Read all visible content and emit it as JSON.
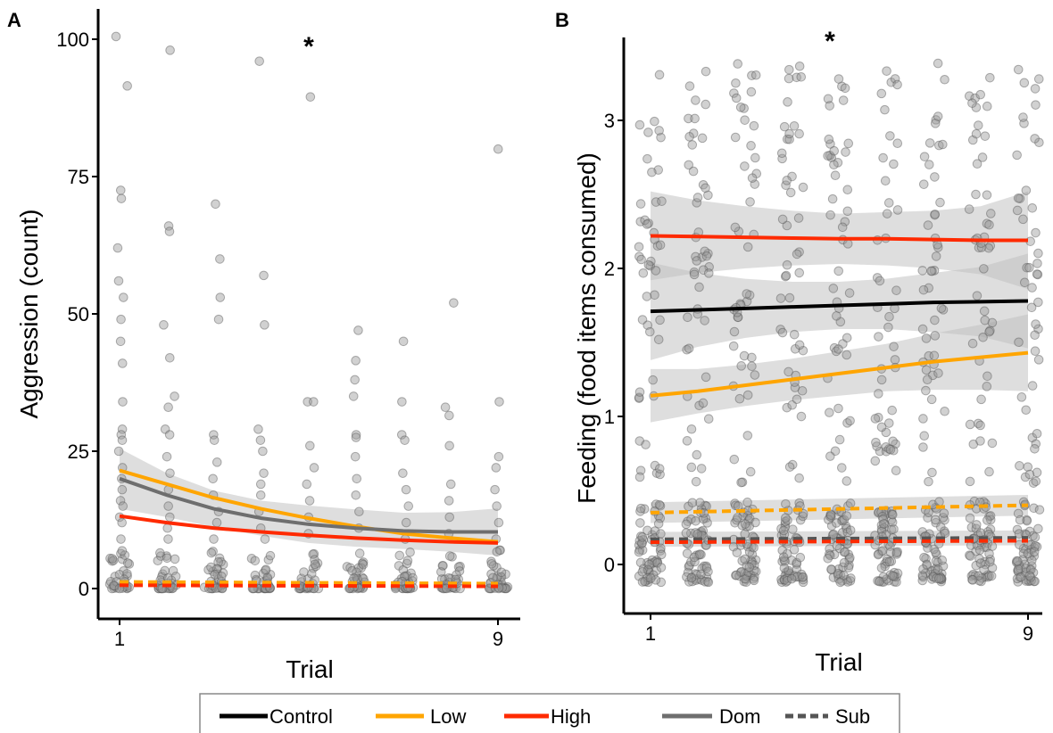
{
  "colors": {
    "control": "#000000",
    "low": "#FFA500",
    "high": "#FF2A00",
    "dom": "#6E6E6E",
    "sub": "#555555",
    "points": "#9A9A9A",
    "ribbon": "#BEBEBE"
  },
  "legend": {
    "control": "Control",
    "low": "Low",
    "high": "High",
    "dom": "Dom",
    "sub": "Sub"
  },
  "chart_data": [
    {
      "panel_label": "A",
      "type": "scatter",
      "xlabel": "Trial",
      "ylabel": "Aggression (count)",
      "x_ticks": [
        "1",
        "9"
      ],
      "xlim": [
        1,
        9
      ],
      "ylim": [
        -2,
        102
      ],
      "y_ticks": [
        "0",
        "25",
        "50",
        "75",
        "100"
      ],
      "significance": "*",
      "significance_x": 5,
      "grid": false,
      "outlier_points": [
        {
          "x": 1,
          "y": 100.5
        },
        {
          "x": 1.1,
          "y": 91.5
        },
        {
          "x": 2.1,
          "y": 98
        },
        {
          "x": 4,
          "y": 96
        },
        {
          "x": 5,
          "y": 89.5
        },
        {
          "x": 9,
          "y": 80
        },
        {
          "x": 1.05,
          "y": 72.5
        },
        {
          "x": 1,
          "y": 71
        },
        {
          "x": 2,
          "y": 66
        },
        {
          "x": 2.05,
          "y": 65
        },
        {
          "x": 3,
          "y": 70
        },
        {
          "x": 3.1,
          "y": 60
        },
        {
          "x": 4,
          "y": 57
        },
        {
          "x": 1,
          "y": 62
        },
        {
          "x": 1,
          "y": 56
        },
        {
          "x": 1.05,
          "y": 53
        },
        {
          "x": 1,
          "y": 49
        },
        {
          "x": 2,
          "y": 48
        },
        {
          "x": 3.1,
          "y": 53
        },
        {
          "x": 3.1,
          "y": 49
        },
        {
          "x": 4,
          "y": 48
        },
        {
          "x": 6,
          "y": 47
        },
        {
          "x": 6.05,
          "y": 41.5
        },
        {
          "x": 7,
          "y": 45
        },
        {
          "x": 8,
          "y": 52
        },
        {
          "x": 9,
          "y": 34
        },
        {
          "x": 1,
          "y": 45
        },
        {
          "x": 1.05,
          "y": 41
        },
        {
          "x": 2,
          "y": 42
        },
        {
          "x": 2.1,
          "y": 35
        },
        {
          "x": 2.05,
          "y": 33
        },
        {
          "x": 5,
          "y": 34
        },
        {
          "x": 5.05,
          "y": 34
        },
        {
          "x": 6,
          "y": 38
        },
        {
          "x": 6,
          "y": 35
        },
        {
          "x": 7,
          "y": 34
        },
        {
          "x": 7.9,
          "y": 33
        },
        {
          "x": 8,
          "y": 31.5
        },
        {
          "x": 1,
          "y": 34
        },
        {
          "x": 1.05,
          "y": 29
        },
        {
          "x": 1,
          "y": 28
        },
        {
          "x": 1,
          "y": 27
        },
        {
          "x": 1.05,
          "y": 25
        },
        {
          "x": 2,
          "y": 29
        },
        {
          "x": 2.05,
          "y": 28
        },
        {
          "x": 2,
          "y": 24
        },
        {
          "x": 3,
          "y": 28
        },
        {
          "x": 3.05,
          "y": 27
        },
        {
          "x": 3,
          "y": 23
        },
        {
          "x": 4,
          "y": 29
        },
        {
          "x": 4,
          "y": 27
        },
        {
          "x": 4.05,
          "y": 25
        },
        {
          "x": 5,
          "y": 26
        },
        {
          "x": 5.05,
          "y": 22
        },
        {
          "x": 6,
          "y": 28
        },
        {
          "x": 6.05,
          "y": 27.5
        },
        {
          "x": 6,
          "y": 24
        },
        {
          "x": 7,
          "y": 28
        },
        {
          "x": 7.05,
          "y": 27
        },
        {
          "x": 7,
          "y": 21
        },
        {
          "x": 8,
          "y": 26
        },
        {
          "x": 8,
          "y": 19
        },
        {
          "x": 9,
          "y": 24
        },
        {
          "x": 9,
          "y": 22
        },
        {
          "x": 1,
          "y": 22
        },
        {
          "x": 1.05,
          "y": 20
        },
        {
          "x": 1,
          "y": 18
        },
        {
          "x": 1,
          "y": 16
        },
        {
          "x": 1.05,
          "y": 15
        },
        {
          "x": 1,
          "y": 13
        },
        {
          "x": 1.05,
          "y": 12
        },
        {
          "x": 1,
          "y": 9
        },
        {
          "x": 2,
          "y": 21
        },
        {
          "x": 2.05,
          "y": 18
        },
        {
          "x": 2,
          "y": 15
        },
        {
          "x": 2.1,
          "y": 13
        },
        {
          "x": 2,
          "y": 11
        },
        {
          "x": 2.05,
          "y": 9
        },
        {
          "x": 3,
          "y": 20
        },
        {
          "x": 3,
          "y": 17
        },
        {
          "x": 3.05,
          "y": 14
        },
        {
          "x": 3,
          "y": 12
        },
        {
          "x": 3.05,
          "y": 9
        },
        {
          "x": 4,
          "y": 21
        },
        {
          "x": 4.05,
          "y": 19
        },
        {
          "x": 4,
          "y": 17
        },
        {
          "x": 4,
          "y": 14
        },
        {
          "x": 4.05,
          "y": 11
        },
        {
          "x": 4,
          "y": 9
        },
        {
          "x": 5,
          "y": 19
        },
        {
          "x": 5,
          "y": 16
        },
        {
          "x": 5.05,
          "y": 13
        },
        {
          "x": 5,
          "y": 10
        },
        {
          "x": 6,
          "y": 20
        },
        {
          "x": 6.05,
          "y": 17
        },
        {
          "x": 6,
          "y": 14
        },
        {
          "x": 6,
          "y": 11
        },
        {
          "x": 7,
          "y": 18
        },
        {
          "x": 7.05,
          "y": 15
        },
        {
          "x": 7,
          "y": 12
        },
        {
          "x": 7,
          "y": 9
        },
        {
          "x": 8,
          "y": 16
        },
        {
          "x": 8.05,
          "y": 13
        },
        {
          "x": 8,
          "y": 10
        },
        {
          "x": 9,
          "y": 18
        },
        {
          "x": 9.05,
          "y": 15
        },
        {
          "x": 9,
          "y": 12
        },
        {
          "x": 9,
          "y": 9
        },
        {
          "x": 9,
          "y": 7
        }
      ],
      "lines": [
        {
          "name": "Low",
          "group": "Dom",
          "color_key": "low",
          "dash": false,
          "ribbon": false,
          "x": [
            1,
            2,
            3,
            4,
            5,
            6,
            7,
            8,
            9
          ],
          "y": [
            21.5,
            19,
            16.5,
            14.5,
            12.8,
            11.3,
            10,
            9.2,
            8.5
          ]
        },
        {
          "name": "Control",
          "group": "Dom",
          "color_key": "dom",
          "dash": false,
          "ribbon": true,
          "x": [
            1,
            2,
            3,
            4,
            5,
            6,
            7,
            8,
            9
          ],
          "y": [
            20,
            17,
            14.5,
            12.8,
            11.7,
            11,
            10.5,
            10.3,
            10.3
          ],
          "lower": [
            14.5,
            13,
            11.2,
            9.6,
            8.3,
            7.6,
            7.2,
            6.7,
            6
          ],
          "upper": [
            25.5,
            21,
            17.8,
            16,
            15.1,
            14.4,
            13.8,
            13.9,
            14.6
          ]
        },
        {
          "name": "High",
          "group": "Dom",
          "color_key": "high",
          "dash": false,
          "ribbon": false,
          "x": [
            1,
            2,
            3,
            4,
            5,
            6,
            7,
            8,
            9
          ],
          "y": [
            13.2,
            12,
            11,
            10.3,
            9.7,
            9.2,
            8.8,
            8.5,
            8.3
          ]
        },
        {
          "name": "Low",
          "group": "Sub",
          "color_key": "low",
          "dash": true,
          "ribbon": false,
          "x": [
            1,
            9
          ],
          "y": [
            1.2,
            0.9
          ]
        },
        {
          "name": "High",
          "group": "Sub",
          "color_key": "high",
          "dash": true,
          "ribbon": false,
          "x": [
            1,
            9
          ],
          "y": [
            0.6,
            0.4
          ]
        }
      ]
    },
    {
      "panel_label": "B",
      "type": "scatter",
      "xlabel": "Trial",
      "ylabel": "Feeding (food items consumed)",
      "x_ticks": [
        "1",
        "9"
      ],
      "xlim": [
        1,
        9
      ],
      "ylim": [
        -0.32,
        3.5
      ],
      "y_ticks": [
        "0",
        "1",
        "2",
        "3"
      ],
      "significance": "*",
      "significance_x": 4.8,
      "grid": false,
      "lines": [
        {
          "name": "High",
          "group": "Dom",
          "color_key": "high",
          "dash": false,
          "ribbon": true,
          "x": [
            1,
            2,
            3,
            4,
            5,
            6,
            7,
            8,
            9
          ],
          "y": [
            2.22,
            2.215,
            2.21,
            2.205,
            2.2,
            2.2,
            2.195,
            2.19,
            2.19
          ],
          "lower": [
            1.92,
            1.97,
            2.0,
            2.02,
            2.03,
            2.02,
            2.0,
            1.96,
            1.86
          ],
          "upper": [
            2.52,
            2.46,
            2.42,
            2.39,
            2.37,
            2.38,
            2.39,
            2.42,
            2.52
          ]
        },
        {
          "name": "Control",
          "group": "Dom",
          "color_key": "control",
          "dash": false,
          "ribbon": true,
          "x": [
            1,
            2,
            3,
            4,
            5,
            6,
            7,
            8,
            9
          ],
          "y": [
            1.71,
            1.72,
            1.73,
            1.74,
            1.75,
            1.76,
            1.77,
            1.775,
            1.78
          ],
          "lower": [
            1.38,
            1.47,
            1.53,
            1.57,
            1.59,
            1.59,
            1.57,
            1.54,
            1.46
          ],
          "upper": [
            2.04,
            1.97,
            1.93,
            1.91,
            1.91,
            1.93,
            1.97,
            2.01,
            2.1
          ]
        },
        {
          "name": "Low",
          "group": "Dom",
          "color_key": "low",
          "dash": false,
          "ribbon": true,
          "x": [
            1,
            2,
            3,
            4,
            5,
            6,
            7,
            8,
            9
          ],
          "y": [
            1.14,
            1.17,
            1.21,
            1.25,
            1.29,
            1.33,
            1.37,
            1.4,
            1.43
          ],
          "lower": [
            0.96,
            1.02,
            1.07,
            1.11,
            1.14,
            1.17,
            1.18,
            1.18,
            1.17
          ],
          "upper": [
            1.32,
            1.32,
            1.35,
            1.39,
            1.44,
            1.49,
            1.56,
            1.62,
            1.69
          ]
        },
        {
          "name": "Low",
          "group": "Sub",
          "color_key": "low",
          "dash": true,
          "ribbon": true,
          "x": [
            1,
            9
          ],
          "y": [
            0.35,
            0.4
          ],
          "lower": [
            0.28,
            0.33
          ],
          "upper": [
            0.42,
            0.47
          ]
        },
        {
          "name": "Control",
          "group": "Sub",
          "color_key": "sub",
          "dash": true,
          "ribbon": true,
          "x": [
            1,
            9
          ],
          "y": [
            0.17,
            0.18
          ],
          "lower": [
            0.12,
            0.13
          ],
          "upper": [
            0.22,
            0.23
          ]
        },
        {
          "name": "High",
          "group": "Sub",
          "color_key": "high",
          "dash": true,
          "ribbon": false,
          "x": [
            1,
            9
          ],
          "y": [
            0.15,
            0.16
          ]
        }
      ]
    }
  ]
}
